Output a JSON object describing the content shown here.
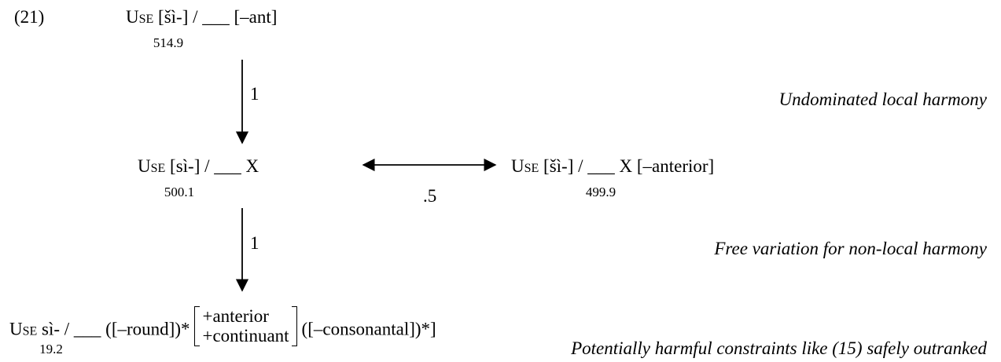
{
  "label": "(21)",
  "nodes": [
    {
      "prefix": "Use",
      "text": "[šì-] / ___ [–ant]",
      "weight": 514.9
    },
    {
      "prefix": "Use",
      "text": "[sì-] / ___ X",
      "weight": 500.1
    },
    {
      "prefix": "Use",
      "text": "[šì-] / ___ X [–anterior]",
      "weight": 499.9
    },
    {
      "prefix": "Use",
      "text": "sì- / ___ ([–round])*",
      "matrix": [
        "+anterior",
        "+continuant"
      ],
      "after": "([–consonantal])*]",
      "weight": 19.2
    }
  ],
  "edges": [
    {
      "label": 1
    },
    {
      "label": ".5"
    },
    {
      "label": 1
    }
  ],
  "notes": [
    "Undominated local harmony",
    "Free variation for non-local harmony",
    "Potentially harmful constraints like (15) safely outranked"
  ]
}
